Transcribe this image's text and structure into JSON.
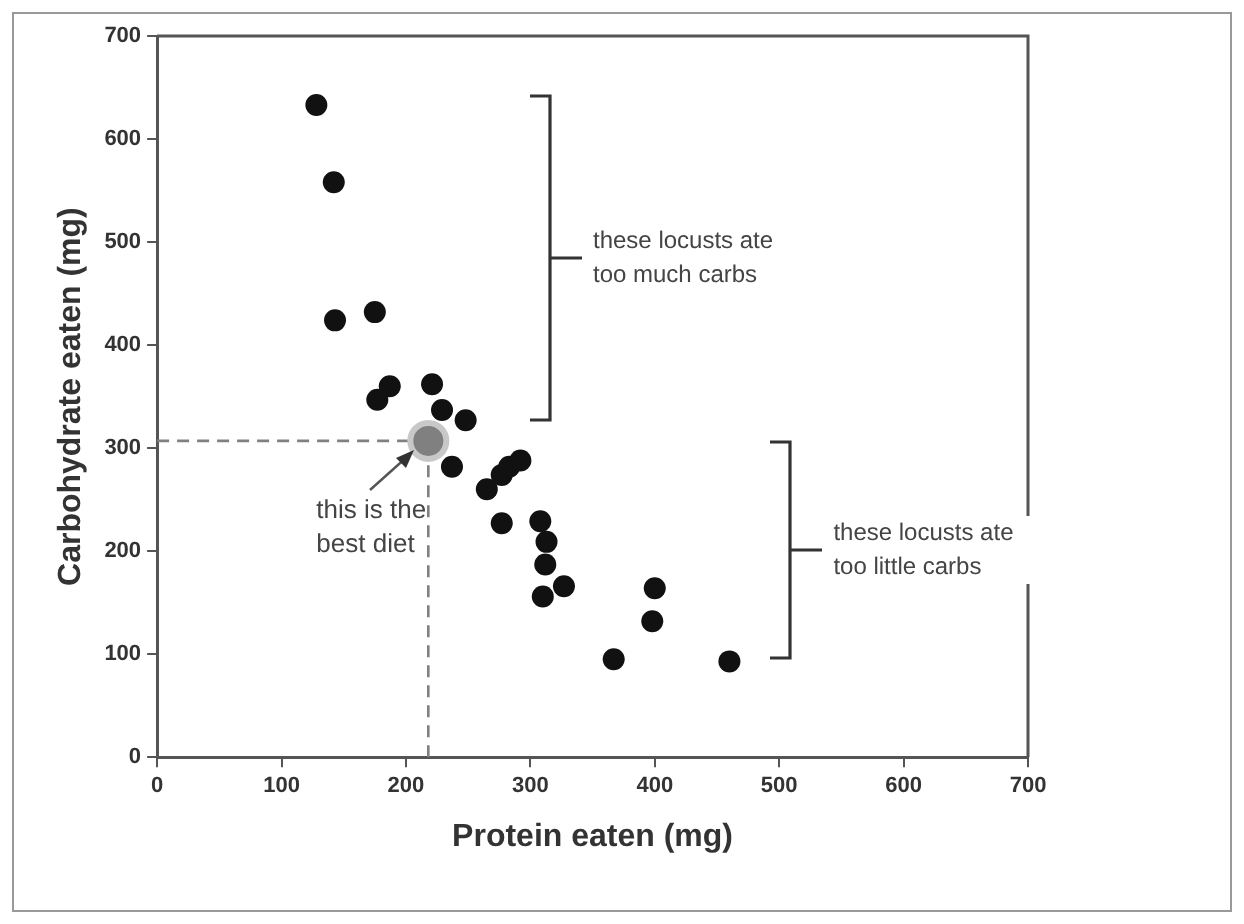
{
  "chart_data": {
    "type": "scatter",
    "xlabel": "Protein eaten (mg)",
    "ylabel": "Carbohydrate eaten (mg)",
    "xlim": [
      0,
      700
    ],
    "xticks": [
      0,
      100,
      200,
      300,
      400,
      500,
      600,
      700
    ],
    "ylim": [
      0,
      700
    ],
    "yticks": [
      0,
      100,
      200,
      300,
      400,
      500,
      600,
      700
    ],
    "grid": false,
    "legend": false,
    "marker": "circle",
    "series": [
      {
        "color": "#111111",
        "x": [
          128,
          142,
          143,
          175,
          187,
          177,
          221,
          229,
          248,
          237,
          265,
          277,
          283,
          292,
          277,
          308,
          313,
          312,
          327,
          310,
          400,
          398,
          367,
          460
        ],
        "values": [
          633,
          558,
          424,
          432,
          360,
          347,
          362,
          337,
          327,
          282,
          260,
          274,
          282,
          288,
          227,
          229,
          209,
          187,
          166,
          156,
          164,
          132,
          95,
          93
        ]
      },
      {
        "color": "#808080",
        "x": [
          218
        ],
        "values": [
          307
        ]
      },
      {
        "type": "line",
        "color": "#808080",
        "line_style": "dashed",
        "marker": "none",
        "x": [
          0,
          218
        ],
        "values": [
          307,
          307
        ]
      },
      {
        "type": "line",
        "color": "#808080",
        "line_style": "dashed",
        "marker": "none",
        "x": [
          218,
          218
        ],
        "values": [
          0,
          307
        ]
      }
    ],
    "annotations": [
      {
        "text": "this is the best diet",
        "x": 218,
        "y": 307
      },
      "these locusts ate too much carbs",
      "these locusts ate too little carbs"
    ]
  }
}
